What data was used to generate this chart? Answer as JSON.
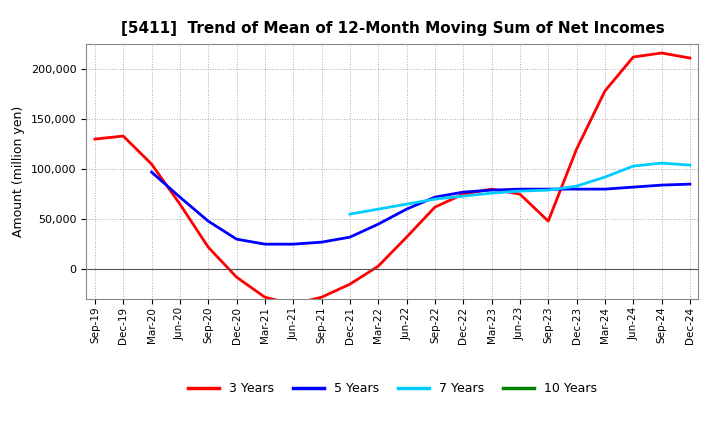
{
  "title": "[5411]  Trend of Mean of 12-Month Moving Sum of Net Incomes",
  "ylabel": "Amount (million yen)",
  "x_labels": [
    "Sep-19",
    "Dec-19",
    "Mar-20",
    "Jun-20",
    "Sep-20",
    "Dec-20",
    "Mar-21",
    "Jun-21",
    "Sep-21",
    "Dec-21",
    "Mar-22",
    "Jun-22",
    "Sep-22",
    "Dec-22",
    "Mar-23",
    "Jun-23",
    "Sep-23",
    "Dec-23",
    "Mar-24",
    "Jun-24",
    "Sep-24",
    "Dec-24"
  ],
  "ylim": [
    -30000,
    225000
  ],
  "yticks": [
    0,
    50000,
    100000,
    150000,
    200000
  ],
  "series": {
    "3 Years": {
      "color": "#FF0000",
      "data_x": [
        0,
        1,
        2,
        3,
        4,
        5,
        6,
        7,
        8,
        9,
        10,
        11,
        12,
        13,
        14,
        15,
        16,
        17,
        18,
        19,
        20,
        21
      ],
      "data_y": [
        130000,
        133000,
        105000,
        65000,
        22000,
        -8000,
        -28000,
        -35000,
        -28000,
        -15000,
        3000,
        32000,
        62000,
        75000,
        80000,
        75000,
        48000,
        120000,
        178000,
        212000,
        216000,
        211000
      ]
    },
    "5 Years": {
      "color": "#0000FF",
      "data_x": [
        2,
        3,
        4,
        5,
        6,
        7,
        8,
        9,
        10,
        11,
        12,
        13,
        14,
        15,
        16,
        17,
        18,
        19,
        20,
        21
      ],
      "data_y": [
        97000,
        72000,
        48000,
        30000,
        25000,
        25000,
        27000,
        32000,
        45000,
        60000,
        72000,
        77000,
        79000,
        80000,
        80000,
        80000,
        80000,
        82000,
        84000,
        85000
      ]
    },
    "7 Years": {
      "color": "#00CCFF",
      "data_x": [
        9,
        10,
        11,
        12,
        13,
        14,
        15,
        16,
        17,
        18,
        19,
        20,
        21
      ],
      "data_y": [
        55000,
        60000,
        65000,
        70000,
        73000,
        76000,
        78000,
        79000,
        83000,
        92000,
        103000,
        106000,
        104000
      ]
    },
    "10 Years": {
      "color": "#008000",
      "data_x": [],
      "data_y": []
    }
  },
  "legend_labels": [
    "3 Years",
    "5 Years",
    "7 Years",
    "10 Years"
  ],
  "legend_colors": [
    "#FF0000",
    "#0000FF",
    "#00CCFF",
    "#008000"
  ],
  "background_color": "#FFFFFF",
  "grid_color": "#AAAAAA"
}
